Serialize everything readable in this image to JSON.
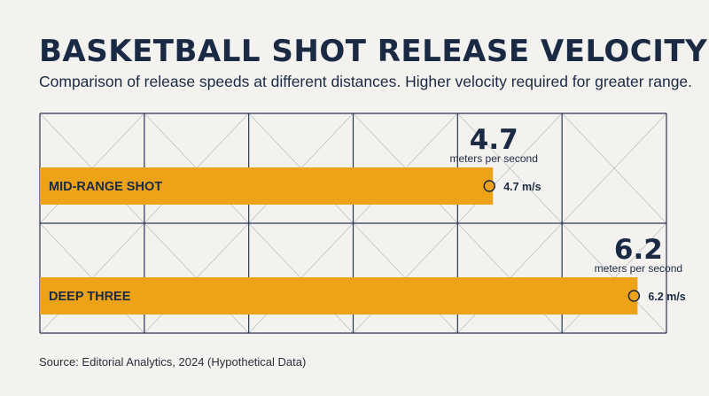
{
  "header": {
    "title": "BASKETBALL SHOT RELEASE VELOCITY",
    "subtitle": "Comparison of release speeds at different distances. Higher velocity required for greater range."
  },
  "footer": {
    "source": "Source: Editorial Analytics, 2024 (Hypothetical Data)"
  },
  "chart_data": {
    "type": "bar",
    "orientation": "horizontal",
    "categories": [
      "MID-RANGE SHOT",
      "DEEP THREE"
    ],
    "values": [
      4.7,
      6.2
    ],
    "value_labels": [
      "4.7 m/s",
      "6.2 m/s"
    ],
    "callouts": [
      {
        "value": "4.7",
        "unit": "meters per second"
      },
      {
        "value": "6.2",
        "unit": "meters per second"
      }
    ],
    "xlim": [
      0,
      6.5
    ],
    "grid": true,
    "colors": {
      "bar": "#eda318",
      "grid": "#2b3550",
      "text": "#1b2a44",
      "background": "#f3f2ee"
    }
  }
}
